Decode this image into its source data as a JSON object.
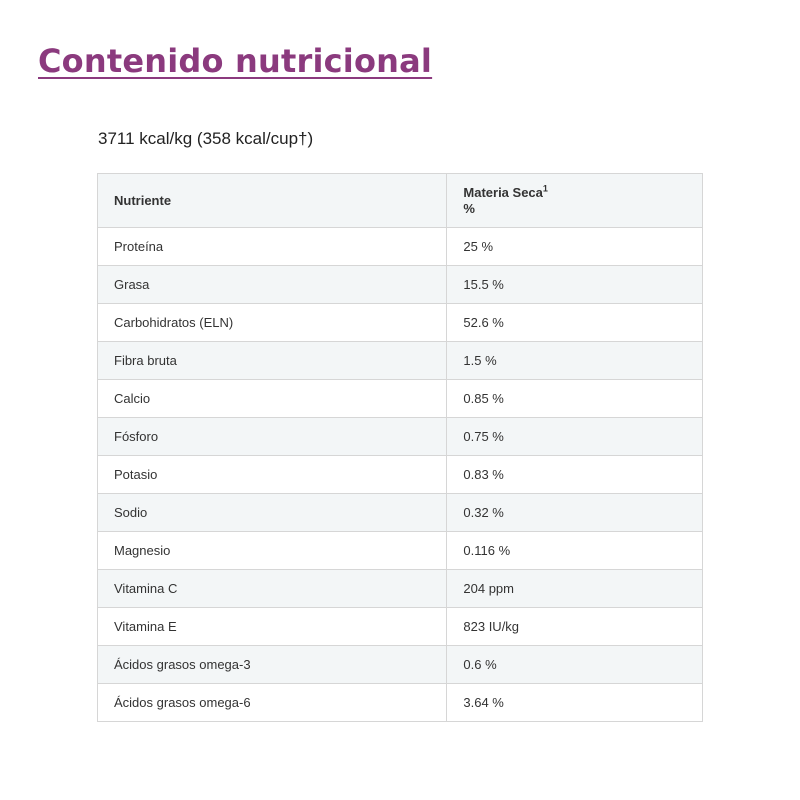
{
  "section_title": "Contenido nutricional",
  "energy": "3711 kcal/kg (358 kcal/cup†)",
  "table": {
    "header_nutrient": "Nutriente",
    "header_dry_matter": "Materia Seca",
    "header_dry_matter_sup": "1",
    "header_dry_matter_unit": "%",
    "rows": [
      {
        "name": "Proteína",
        "value": "25 %"
      },
      {
        "name": "Grasa",
        "value": "15.5 %"
      },
      {
        "name": "Carbohidratos (ELN)",
        "value": "52.6 %"
      },
      {
        "name": "Fibra bruta",
        "value": "1.5 %"
      },
      {
        "name": "Calcio",
        "value": "0.85 %"
      },
      {
        "name": "Fósforo",
        "value": "0.75 %"
      },
      {
        "name": "Potasio",
        "value": "0.83 %"
      },
      {
        "name": "Sodio",
        "value": "0.32 %"
      },
      {
        "name": "Magnesio",
        "value": "0.116 %"
      },
      {
        "name": "Vitamina C",
        "value": "204 ppm"
      },
      {
        "name": "Vitamina E",
        "value": "823 IU/kg"
      },
      {
        "name": "Ácidos grasos omega-3",
        "value": "0.6 %"
      },
      {
        "name": "Ácidos grasos omega-6",
        "value": "3.64 %"
      }
    ]
  },
  "colors": {
    "title": "#8b3a7e",
    "row_alt": "#f3f6f7",
    "border": "#d6d6d6"
  }
}
